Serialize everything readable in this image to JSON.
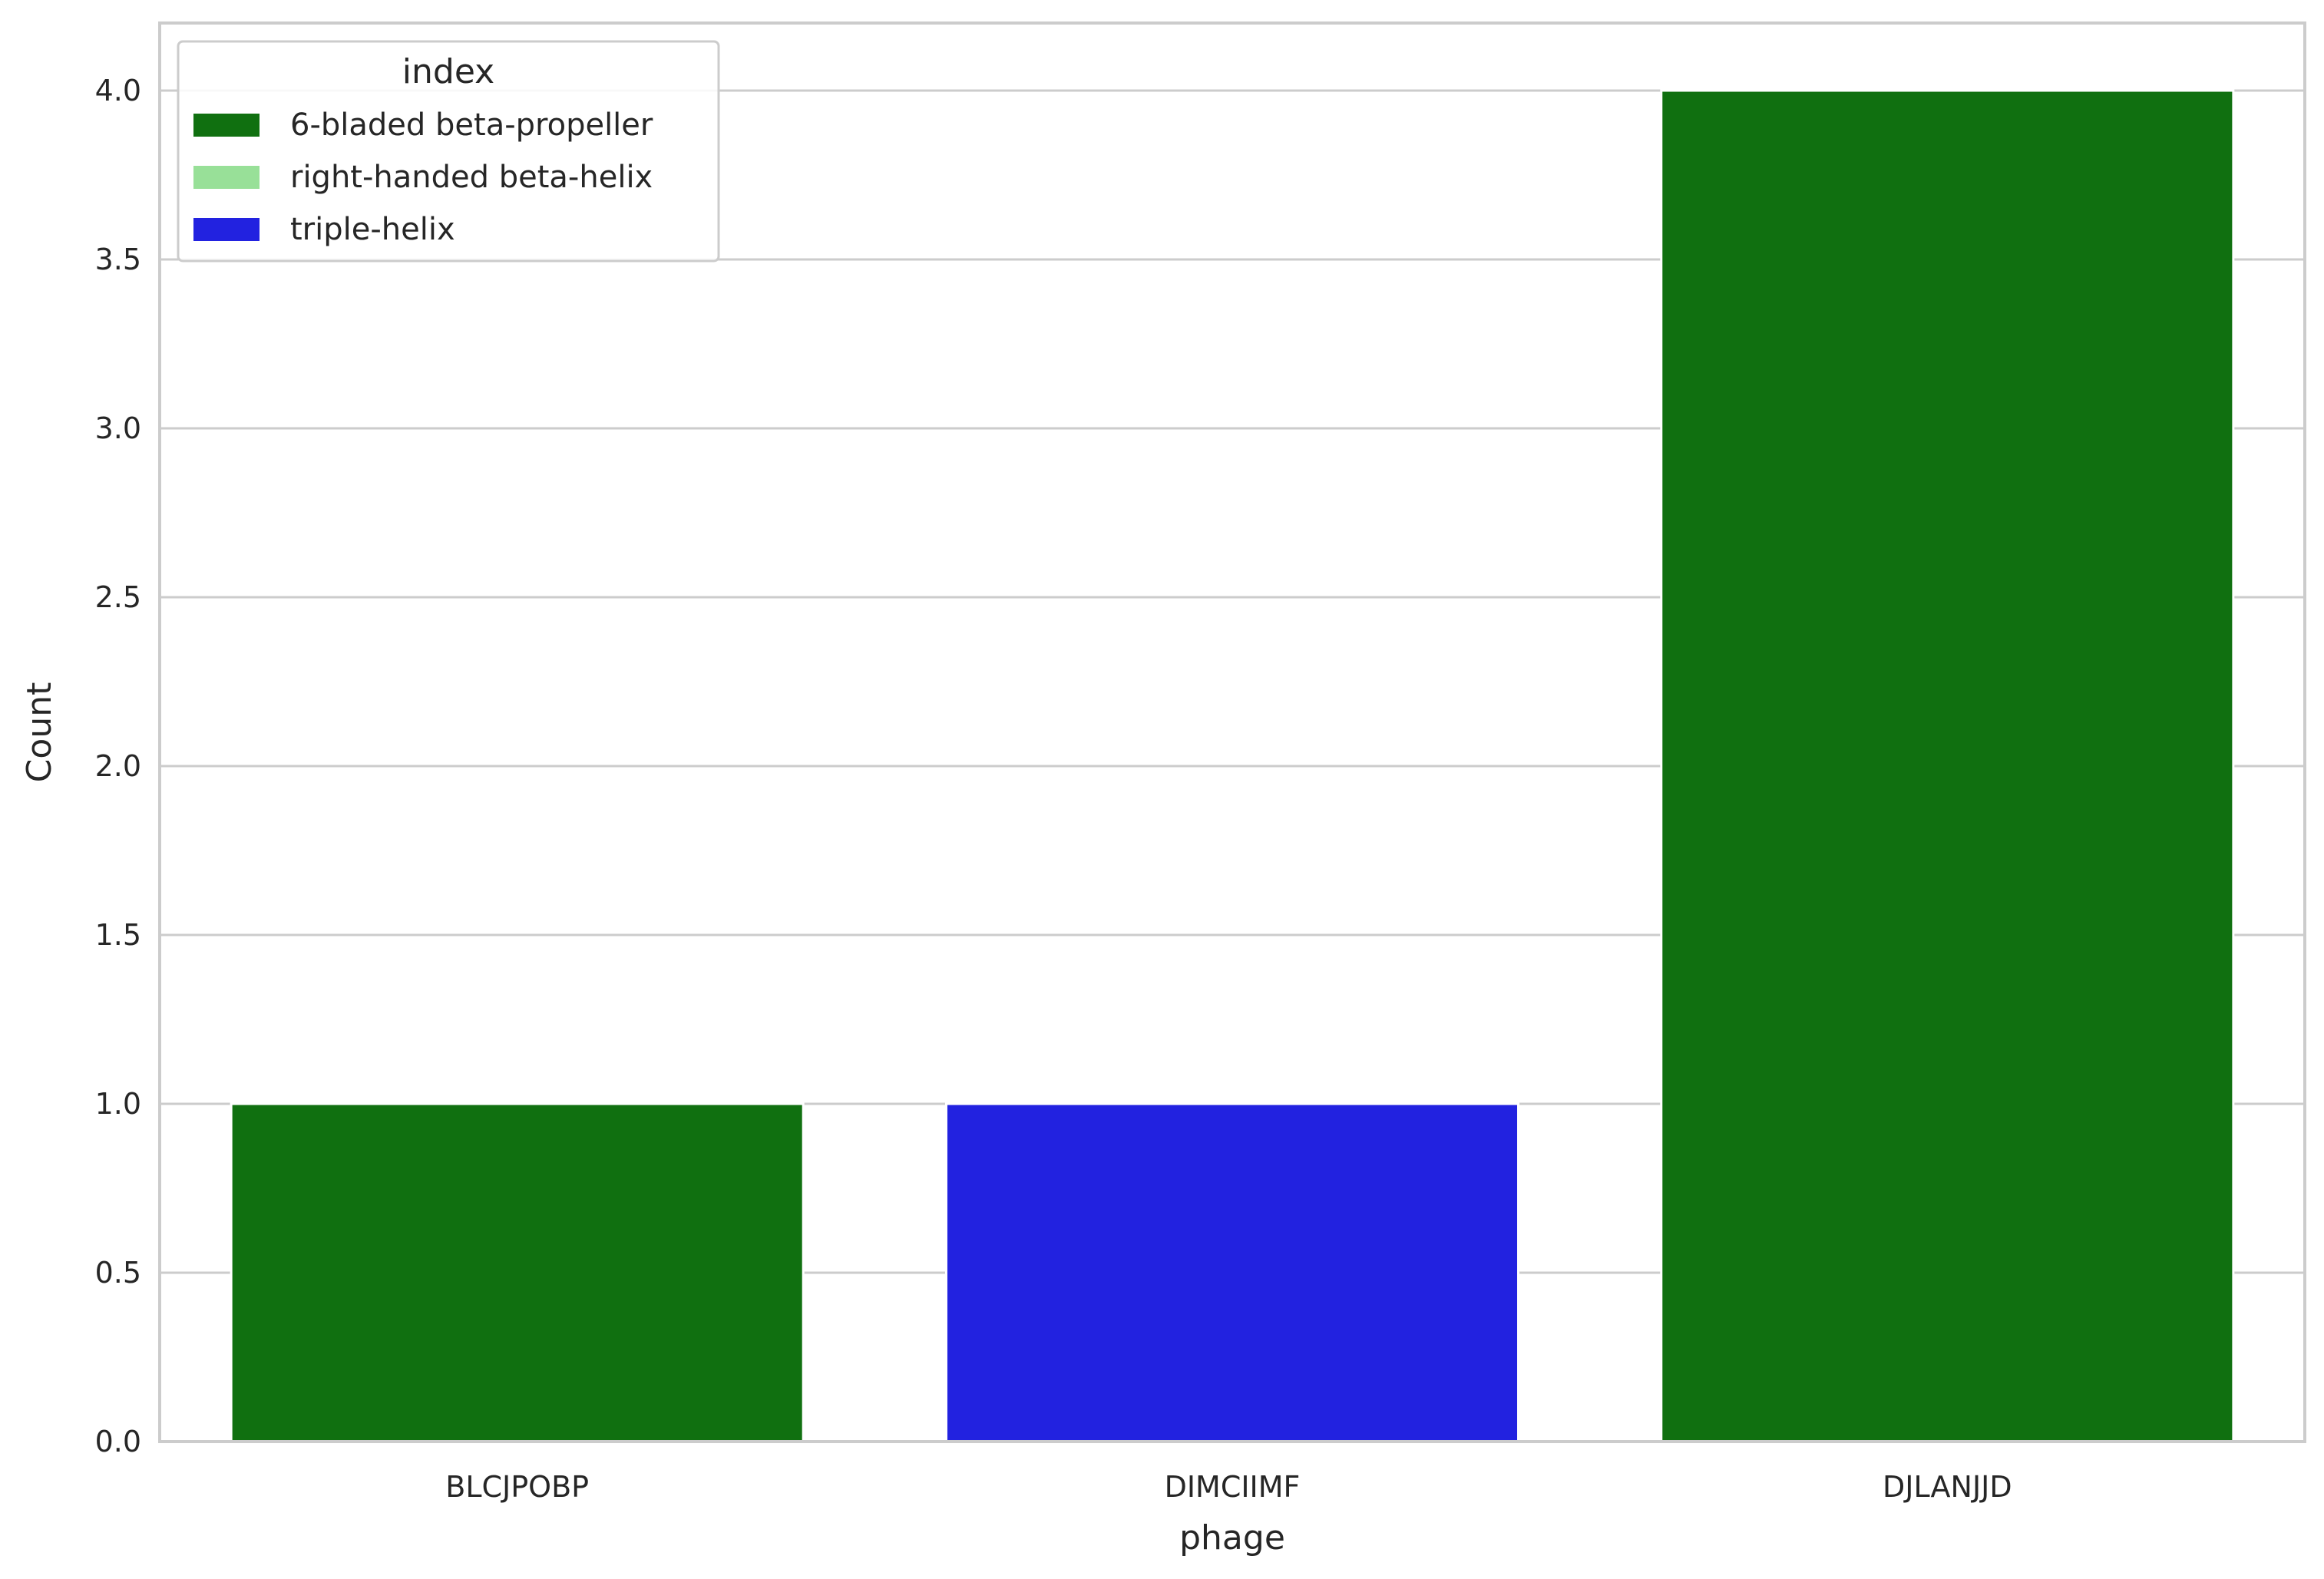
{
  "chart_data": {
    "type": "bar",
    "xlabel": "phage",
    "ylabel": "Count",
    "categories": [
      "BLCJPOBP",
      "DIMCIIMF",
      "DJLANJJD"
    ],
    "bars": [
      {
        "category": "BLCJPOBP",
        "value": 1,
        "series": "6-bladed beta-propeller"
      },
      {
        "category": "DIMCIIMF",
        "value": 1,
        "series": "triple-helix"
      },
      {
        "category": "DJLANJJD",
        "value": 4,
        "series": "6-bladed beta-propeller"
      }
    ],
    "ylim": [
      0,
      4.2
    ],
    "yticks": [
      0.0,
      0.5,
      1.0,
      1.5,
      2.0,
      2.5,
      3.0,
      3.5,
      4.0
    ],
    "ytick_labels": [
      "0.0",
      "0.5",
      "1.0",
      "1.5",
      "2.0",
      "2.5",
      "3.0",
      "3.5",
      "4.0"
    ],
    "grid": true,
    "legend": {
      "title": "index",
      "placement": "top-left",
      "entries": [
        {
          "name": "6-bladed beta-propeller",
          "color": "#107010"
        },
        {
          "name": "right-handed beta-helix",
          "color": "#98e098"
        },
        {
          "name": "triple-helix",
          "color": "#2222e0"
        }
      ]
    }
  }
}
